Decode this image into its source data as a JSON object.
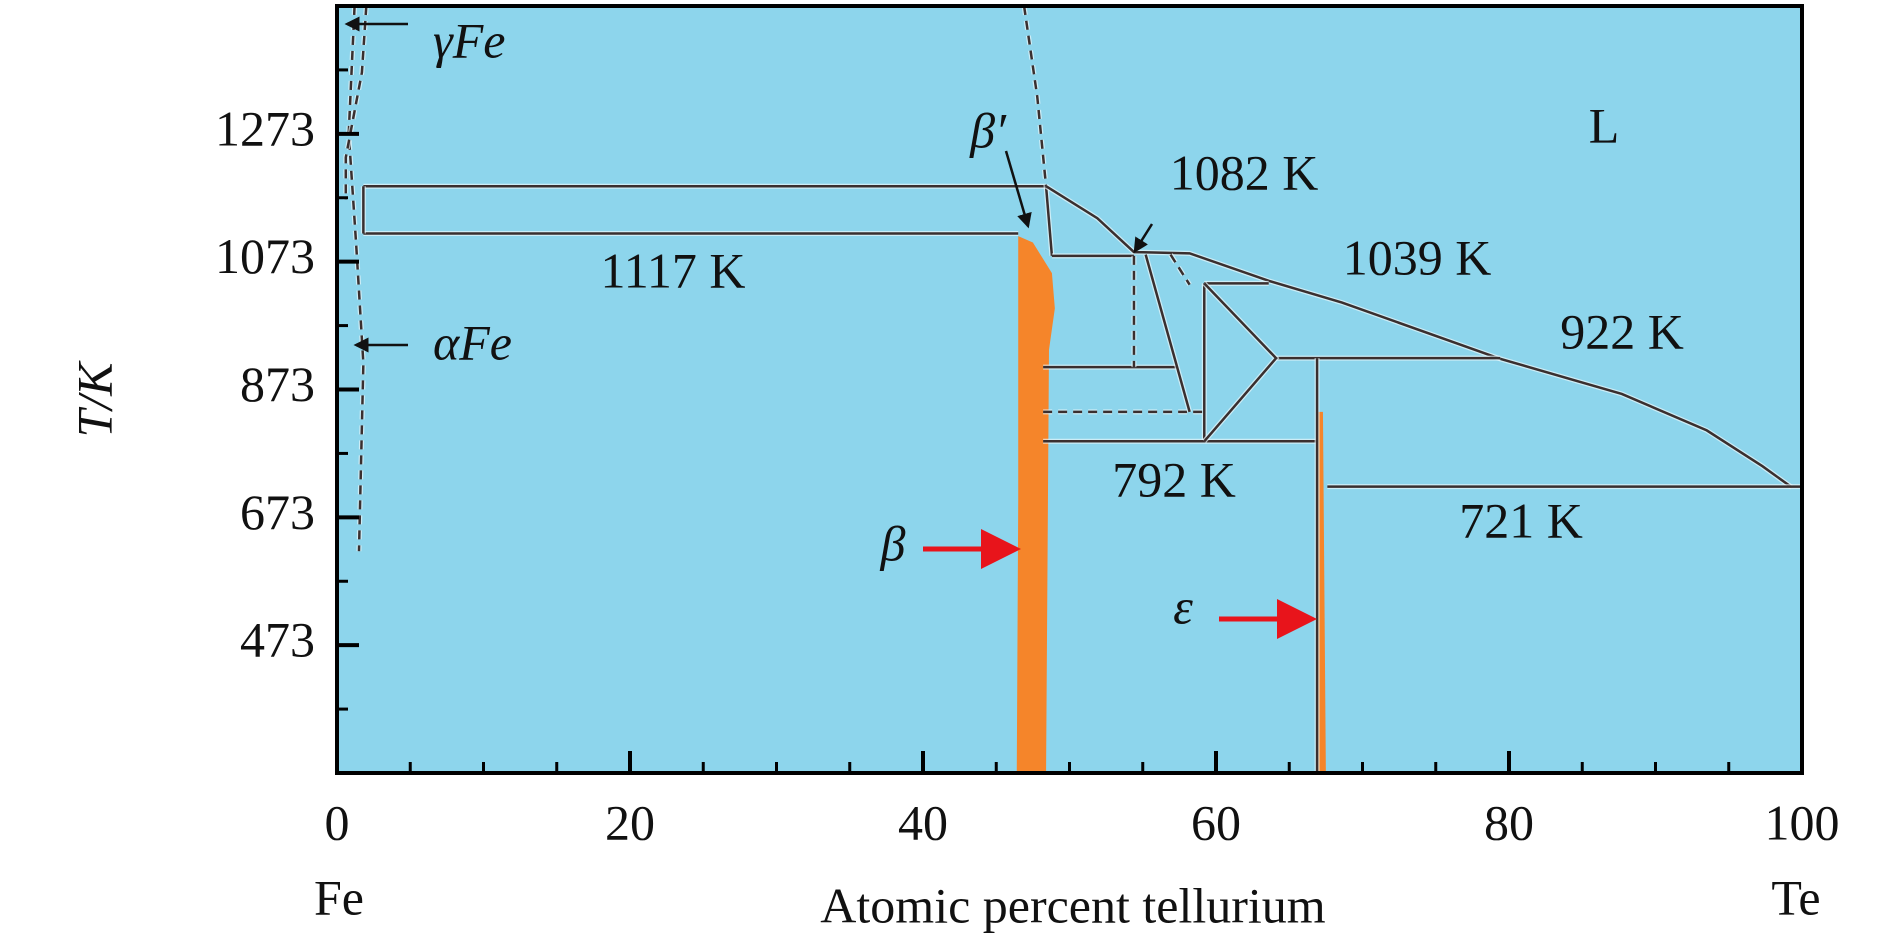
{
  "chart_data": {
    "type": "phase",
    "xlabel": "Atomic percent tellurium",
    "ylabel": "T/K",
    "x_end_labels": [
      "Fe",
      "Te"
    ],
    "xlim": [
      0,
      100
    ],
    "ylim": [
      273,
      1473
    ],
    "xticks": [
      0,
      20,
      40,
      60,
      80,
      100
    ],
    "xminorticks": [
      5,
      10,
      15,
      25,
      30,
      35,
      45,
      50,
      55,
      65,
      70,
      75,
      85,
      90,
      95
    ],
    "yticks": [
      473,
      673,
      873,
      1073,
      1273
    ],
    "yminorticks": [
      373,
      573,
      773,
      973,
      1173,
      1373
    ],
    "background": "#8dd5ec",
    "line_color": "#3a2f2f",
    "region_color": "#f5852a",
    "arrow_color": "#e8141b",
    "boundaries": [
      {
        "style": "solid",
        "x": [
          1.8,
          46.5
        ],
        "y": [
          1117,
          1117
        ]
      },
      {
        "style": "solid",
        "x": [
          1.8,
          48.4
        ],
        "y": [
          1191,
          1191
        ]
      },
      {
        "style": "solid",
        "x": [
          1.8,
          1.8
        ],
        "y": [
          1191,
          1117
        ]
      },
      {
        "style": "dashed",
        "x": [
          1.2,
          0.8,
          1.3,
          1.8,
          1.5
        ],
        "y": [
          1473,
          1274,
          1103,
          914,
          620
        ]
      },
      {
        "style": "dashed",
        "x": [
          2.0,
          1.7,
          0.6,
          0.6
        ],
        "y": [
          1473,
          1369,
          1236,
          1170
        ]
      },
      {
        "style": "dashed",
        "x": [
          46.9,
          47.8,
          48.4
        ],
        "y": [
          1473,
          1331,
          1191
        ]
      },
      {
        "style": "solid",
        "x": [
          48.4,
          48.8
        ],
        "y": [
          1191,
          1082
        ]
      },
      {
        "style": "solid",
        "x": [
          48.4,
          51.9,
          54.4,
          58.2,
          63.6,
          68.6,
          79.4,
          87.7,
          93.5,
          97.3,
          99.3
        ],
        "y": [
          1191,
          1141,
          1088,
          1086,
          1043,
          1009,
          921,
          866,
          809,
          753,
          720
        ]
      },
      {
        "style": "solid",
        "x": [
          67.6,
          100
        ],
        "y": [
          721,
          721
        ]
      },
      {
        "style": "solid",
        "x": [
          64.1,
          79.4
        ],
        "y": [
          922,
          922
        ]
      },
      {
        "style": "solid",
        "x": [
          59.2,
          63.6
        ],
        "y": [
          1039,
          1039
        ]
      },
      {
        "style": "solid",
        "x": [
          59.2,
          59.2
        ],
        "y": [
          1039,
          792
        ]
      },
      {
        "style": "solid",
        "x": [
          48.2,
          66.9
        ],
        "y": [
          792,
          792
        ]
      },
      {
        "style": "solid",
        "x": [
          59.2,
          64.1,
          59.2
        ],
        "y": [
          1039,
          922,
          792
        ]
      },
      {
        "style": "solid",
        "x": [
          48.8,
          54.4
        ],
        "y": [
          1082,
          1082
        ]
      },
      {
        "style": "solid",
        "x": [
          48.2,
          57.3
        ],
        "y": [
          908,
          908
        ]
      },
      {
        "style": "dashed",
        "x": [
          48.2,
          59.2
        ],
        "y": [
          838,
          838
        ]
      },
      {
        "style": "dashed",
        "x": [
          54.4,
          54.4
        ],
        "y": [
          1082,
          908
        ]
      },
      {
        "style": "solid",
        "x": [
          55.2,
          58.2
        ],
        "y": [
          1084,
          838
        ]
      },
      {
        "style": "dashed",
        "x": [
          56.9,
          58.2
        ],
        "y": [
          1084,
          1037
        ]
      },
      {
        "style": "solid",
        "x": [
          66.9,
          66.9
        ],
        "y": [
          922,
          273
        ]
      }
    ],
    "regions": [
      {
        "x": [
          46.5,
          47.5,
          48.8,
          49.0,
          48.6,
          48.4,
          46.4,
          46.5
        ],
        "y": [
          1113,
          1103,
          1055,
          1000,
          935,
          273,
          273,
          700
        ]
      },
      {
        "x": [
          66.9,
          67.3,
          67.5,
          66.9
        ],
        "y": [
          838,
          838,
          273,
          273
        ]
      }
    ],
    "annotations": [
      "γFe",
      "αFe",
      "β′",
      "1082 K",
      "1039 K",
      "922 K",
      "L",
      "1117 K",
      "792 K",
      "721 K",
      "β",
      "ε"
    ]
  }
}
